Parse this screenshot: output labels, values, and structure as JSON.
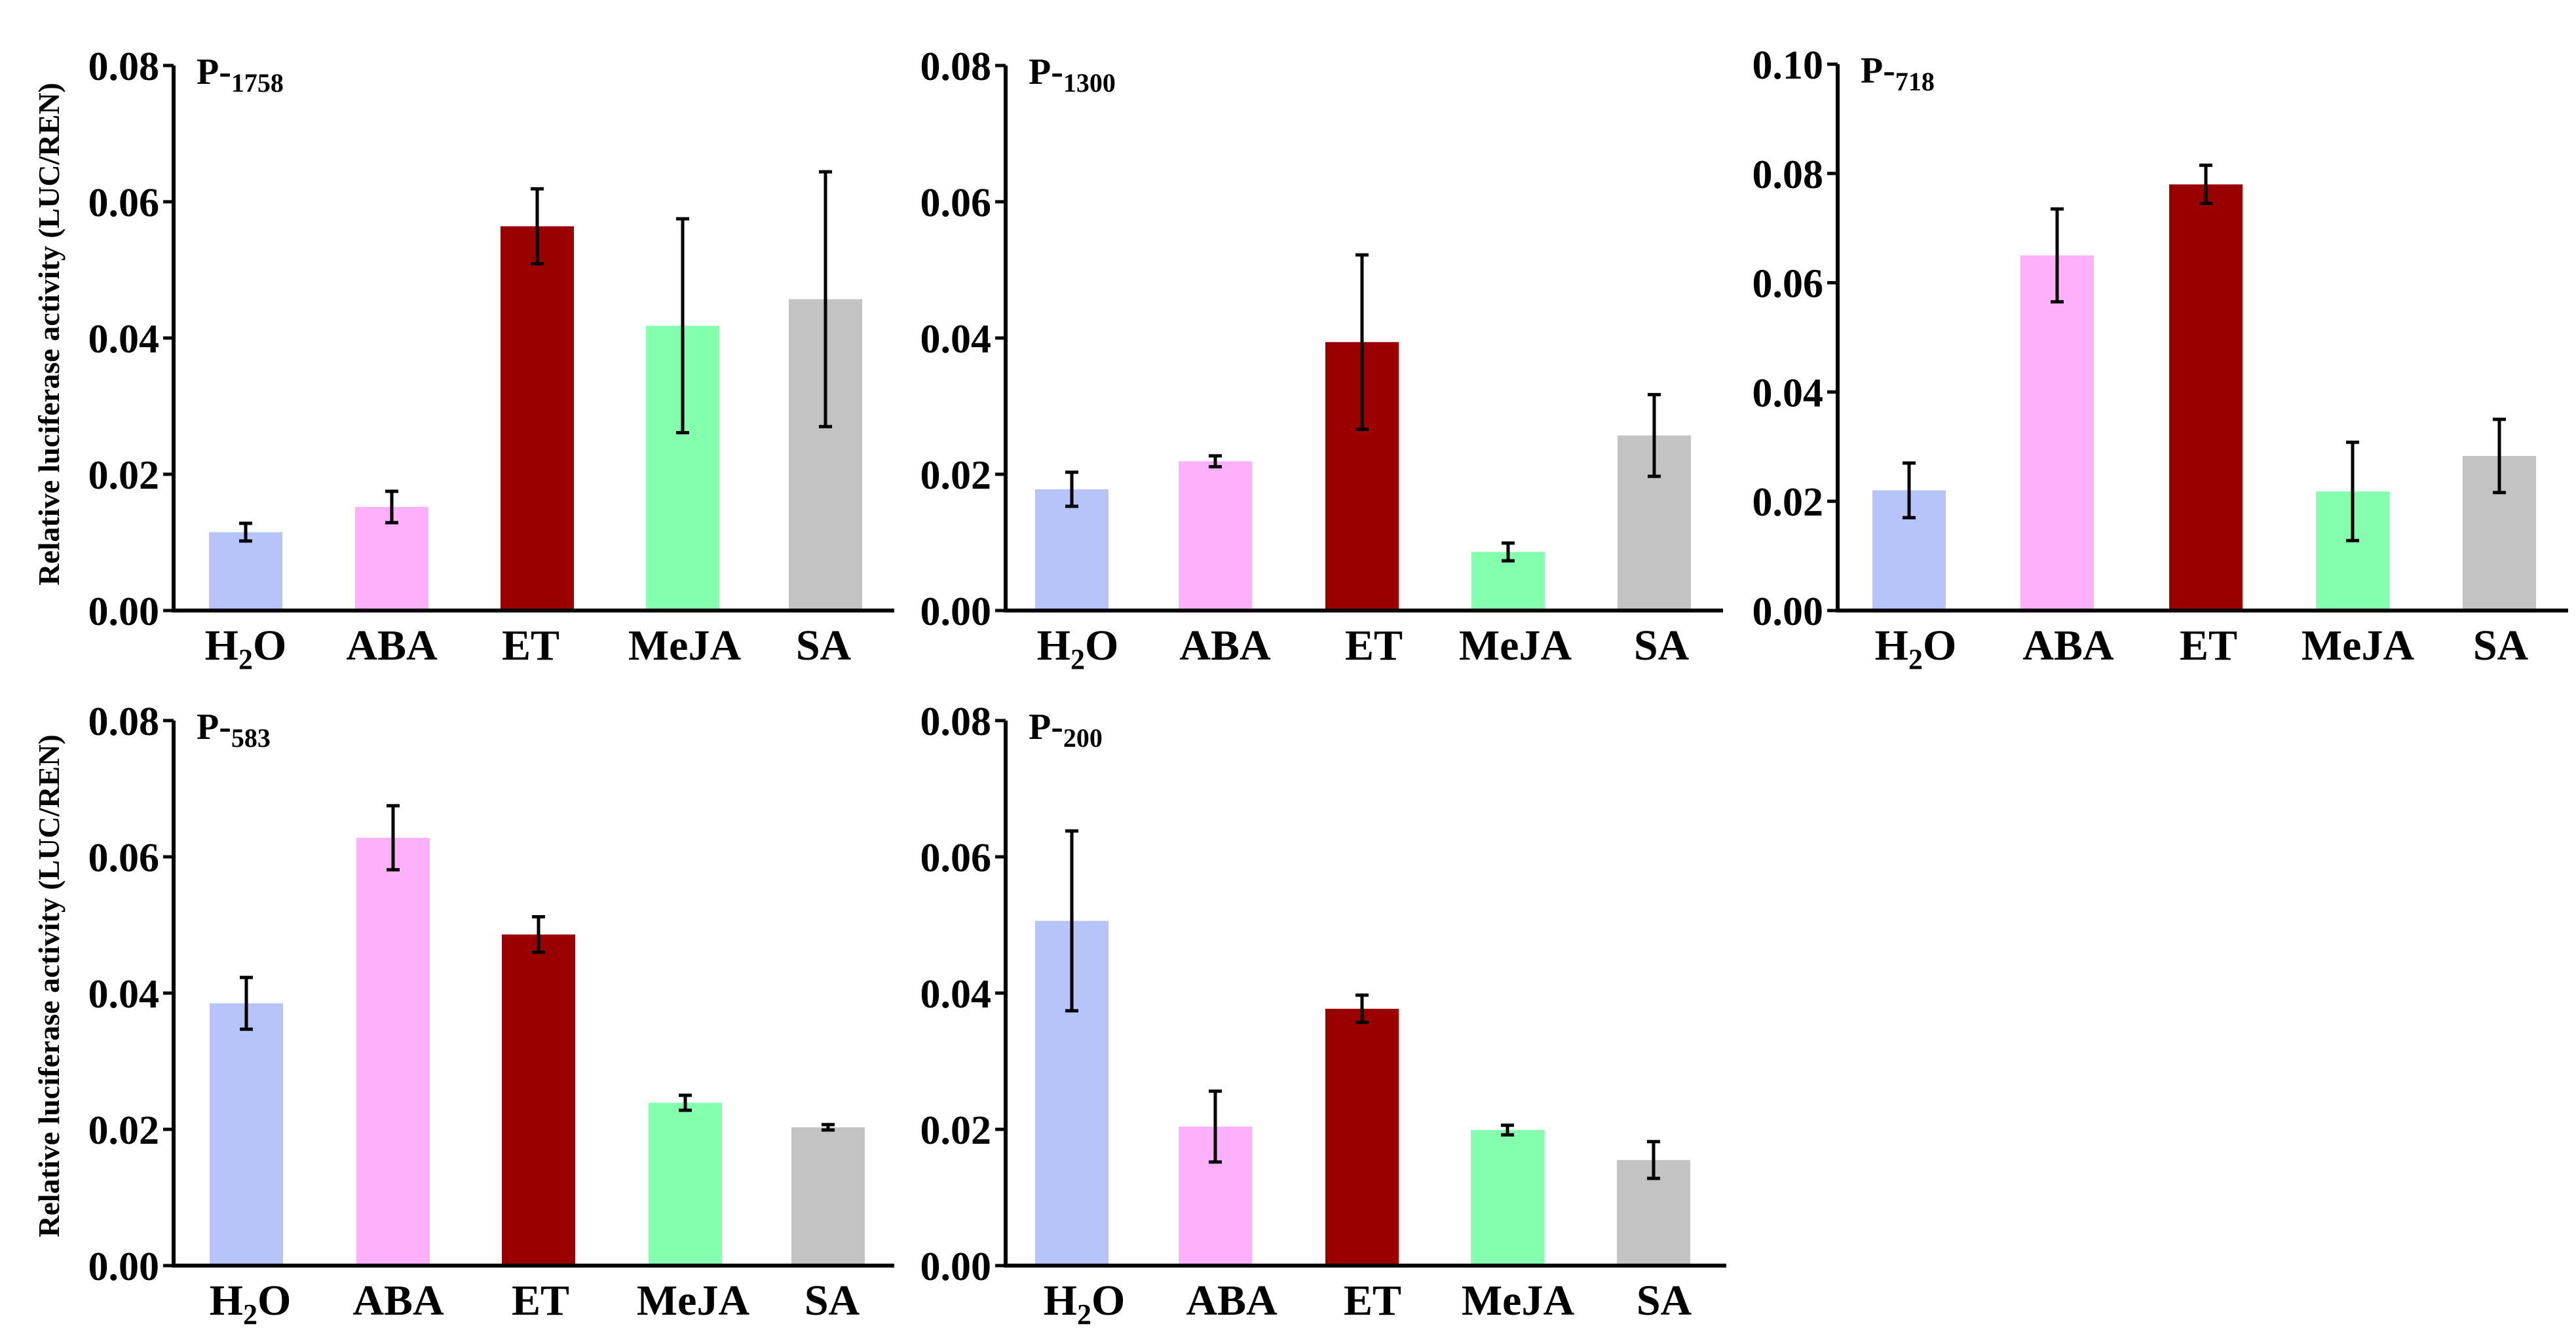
{
  "figure": {
    "ylabel": "Relative luciferase activity (LUC/REN)"
  },
  "chart_data": [
    {
      "type": "bar",
      "title": "P-1758",
      "title_main": "P-",
      "title_sub": "1758",
      "categories": [
        "H2O",
        "ABA",
        "ET",
        "MeJA",
        "SA"
      ],
      "category_labels": [
        {
          "main": "H",
          "sub": "2",
          "rest": "O"
        },
        {
          "main": "ABA"
        },
        {
          "main": "ET"
        },
        {
          "main": "MeJA"
        },
        {
          "main": "SA"
        }
      ],
      "values": [
        0.0115,
        0.0152,
        0.0564,
        0.0418,
        0.0457
      ],
      "errors": [
        0.0013,
        0.0023,
        0.0055,
        0.0157,
        0.0187
      ],
      "ylim": [
        0,
        0.08
      ],
      "yticks": [
        "0.00",
        "0.02",
        "0.04",
        "0.06",
        "0.08"
      ],
      "ylabel": "Relative luciferase activity (LUC/REN)",
      "xlabel": ""
    },
    {
      "type": "bar",
      "title": "P-1300",
      "title_main": "P-",
      "title_sub": "1300",
      "categories": [
        "H2O",
        "ABA",
        "ET",
        "MeJA",
        "SA"
      ],
      "category_labels": [
        {
          "main": "H",
          "sub": "2",
          "rest": "O"
        },
        {
          "main": "ABA"
        },
        {
          "main": "ET"
        },
        {
          "main": "MeJA"
        },
        {
          "main": "SA"
        }
      ],
      "values": [
        0.0178,
        0.0219,
        0.0394,
        0.0086,
        0.0257
      ],
      "errors": [
        0.0025,
        0.0008,
        0.0128,
        0.0013,
        0.006
      ],
      "ylim": [
        0,
        0.08
      ],
      "yticks": [
        "0.00",
        "0.02",
        "0.04",
        "0.06",
        "0.08"
      ],
      "ylabel": "",
      "xlabel": ""
    },
    {
      "type": "bar",
      "title": "P-718",
      "title_main": "P-",
      "title_sub": "718",
      "categories": [
        "H2O",
        "ABA",
        "ET",
        "MeJA",
        "SA"
      ],
      "category_labels": [
        {
          "main": "H",
          "sub": "2",
          "rest": "O"
        },
        {
          "main": "ABA"
        },
        {
          "main": "ET"
        },
        {
          "main": "MeJA"
        },
        {
          "main": "SA"
        }
      ],
      "values": [
        0.022,
        0.065,
        0.078,
        0.0218,
        0.0283
      ],
      "errors": [
        0.005,
        0.0085,
        0.0035,
        0.009,
        0.0067
      ],
      "ylim": [
        0,
        0.1
      ],
      "yticks": [
        "0.00",
        "0.02",
        "0.04",
        "0.06",
        "0.08",
        "0.10"
      ],
      "ylabel": "",
      "xlabel": ""
    },
    {
      "type": "bar",
      "title": "P-583",
      "title_main": "P-",
      "title_sub": "583",
      "categories": [
        "H2O",
        "ABA",
        "ET",
        "MeJA",
        "SA"
      ],
      "category_labels": [
        {
          "main": "H",
          "sub": "2",
          "rest": "O"
        },
        {
          "main": "ABA"
        },
        {
          "main": "ET"
        },
        {
          "main": "MeJA"
        },
        {
          "main": "SA"
        }
      ],
      "values": [
        0.0385,
        0.0628,
        0.0486,
        0.0239,
        0.0203
      ],
      "errors": [
        0.0038,
        0.0047,
        0.0026,
        0.0011,
        0.0004
      ],
      "ylim": [
        0,
        0.08
      ],
      "yticks": [
        "0.00",
        "0.02",
        "0.04",
        "0.06",
        "0.08"
      ],
      "ylabel": "Relative luciferase activity (LUC/REN)",
      "xlabel": ""
    },
    {
      "type": "bar",
      "title": "P-200",
      "title_main": "P-",
      "title_sub": "200",
      "categories": [
        "H2O",
        "ABA",
        "ET",
        "MeJA",
        "SA"
      ],
      "category_labels": [
        {
          "main": "H",
          "sub": "2",
          "rest": "O"
        },
        {
          "main": "ABA"
        },
        {
          "main": "ET"
        },
        {
          "main": "MeJA"
        },
        {
          "main": "SA"
        }
      ],
      "values": [
        0.0506,
        0.0204,
        0.0377,
        0.0199,
        0.0155
      ],
      "errors": [
        0.0132,
        0.0052,
        0.002,
        0.0007,
        0.0027
      ],
      "ylim": [
        0,
        0.08
      ],
      "yticks": [
        "0.00",
        "0.02",
        "0.04",
        "0.06",
        "0.08"
      ],
      "ylabel": "",
      "xlabel": ""
    }
  ],
  "colors": {
    "series": [
      "#b7c4fa",
      "#ffb0fb",
      "#9a0000",
      "#84ffad",
      "#c3c3c3"
    ],
    "axis": "#000000",
    "background": "#ffffff"
  }
}
